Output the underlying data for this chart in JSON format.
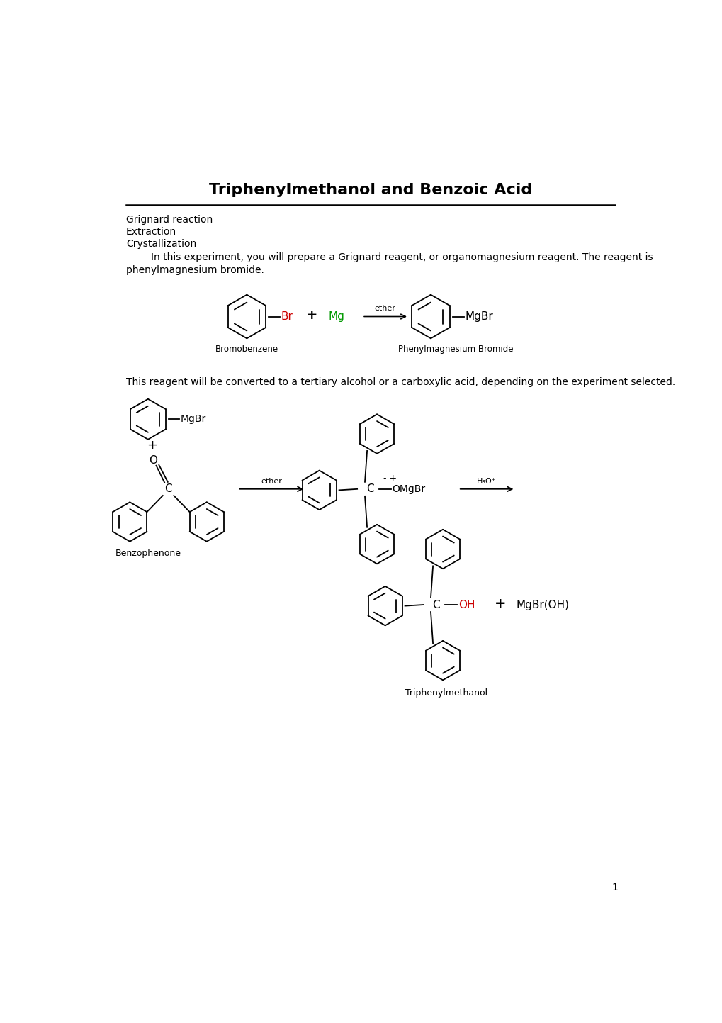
{
  "title": "Triphenylmethanol and Benzoic Acid",
  "keywords": [
    "Grignard reaction",
    "Extraction",
    "Crystallization"
  ],
  "intro_text_1": "        In this experiment, you will prepare a Grignard reagent, or organomagnesium reagent. The reagent is",
  "intro_text_2": "phenylmagnesium bromide.",
  "body_text": "This reagent will be converted to a tertiary alcohol or a carboxylic acid, depending on the experiment selected.",
  "page_number": "1",
  "bg_color": "#ffffff",
  "text_color": "#000000",
  "red_color": "#cc0000",
  "green_color": "#009900"
}
